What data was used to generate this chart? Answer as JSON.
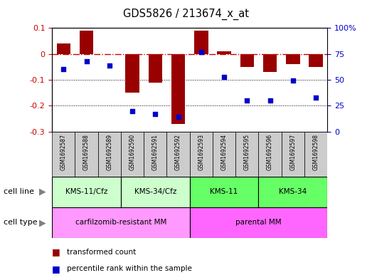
{
  "title": "GDS5826 / 213674_x_at",
  "samples": [
    "GSM1692587",
    "GSM1692588",
    "GSM1692589",
    "GSM1692590",
    "GSM1692591",
    "GSM1692592",
    "GSM1692593",
    "GSM1692594",
    "GSM1692595",
    "GSM1692596",
    "GSM1692597",
    "GSM1692598"
  ],
  "transformed_count": [
    0.04,
    0.09,
    0.0,
    -0.15,
    -0.11,
    -0.27,
    0.09,
    0.01,
    -0.05,
    -0.07,
    -0.04,
    -0.05
  ],
  "percentile_rank_pct": [
    60,
    68,
    64,
    20,
    17,
    14,
    77,
    53,
    30,
    30,
    49,
    33
  ],
  "bar_color": "#990000",
  "dot_color": "#0000cc",
  "ref_line_color": "#cc0000",
  "ylim_left": [
    -0.3,
    0.1
  ],
  "ylim_right": [
    0,
    100
  ],
  "yticks_left": [
    -0.3,
    -0.2,
    -0.1,
    0.0,
    0.1
  ],
  "ytick_labels_left": [
    "-0.3",
    "-0.2",
    "-0.1",
    "0",
    "0.1"
  ],
  "yticks_right": [
    0,
    25,
    50,
    75,
    100
  ],
  "ytick_labels_right": [
    "0",
    "25",
    "50",
    "75",
    "100%"
  ],
  "cell_line_groups": [
    {
      "label": "KMS-11/Cfz",
      "start": 0,
      "end": 3,
      "color": "#ccffcc"
    },
    {
      "label": "KMS-34/Cfz",
      "start": 3,
      "end": 6,
      "color": "#ccffcc"
    },
    {
      "label": "KMS-11",
      "start": 6,
      "end": 9,
      "color": "#66ff66"
    },
    {
      "label": "KMS-34",
      "start": 9,
      "end": 12,
      "color": "#66ff66"
    }
  ],
  "cell_type_groups": [
    {
      "label": "carfilzomib-resistant MM",
      "start": 0,
      "end": 6,
      "color": "#ff99ff"
    },
    {
      "label": "parental MM",
      "start": 6,
      "end": 12,
      "color": "#ff66ff"
    }
  ],
  "cell_line_label": "cell line",
  "cell_type_label": "cell type",
  "legend_items": [
    {
      "label": "transformed count",
      "color": "#990000"
    },
    {
      "label": "percentile rank within the sample",
      "color": "#0000cc"
    }
  ],
  "bg_color": "#ffffff",
  "sample_bg_color": "#cccccc"
}
